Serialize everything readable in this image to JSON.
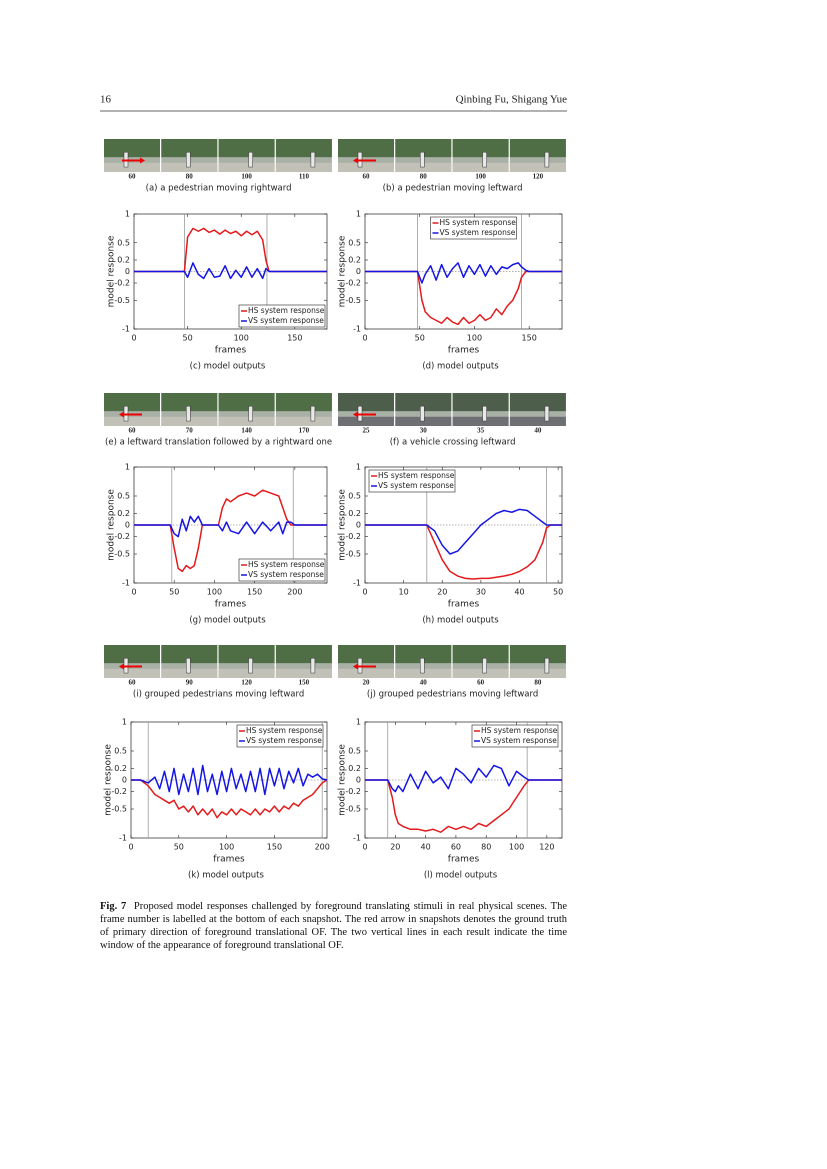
{
  "header": {
    "page_number": "16",
    "authors": "Qinbing Fu, Shigang Yue"
  },
  "snapshots": [
    {
      "frames": [
        60,
        80,
        100,
        110
      ],
      "caption": "(a) a pedestrian moving rightward"
    },
    {
      "frames": [
        60,
        80,
        100,
        120
      ],
      "caption": "(b) a pedestrian moving leftward"
    },
    {
      "frames": [
        60,
        70,
        140,
        170
      ],
      "caption": "(e) a leftward translation followed by a rightward one"
    },
    {
      "frames": [
        25,
        30,
        35,
        40
      ],
      "caption": "(f) a vehicle crossing leftward"
    },
    {
      "frames": [
        60,
        90,
        120,
        150
      ],
      "caption": "(i) grouped pedestrians moving leftward"
    },
    {
      "frames": [
        20,
        40,
        60,
        80
      ],
      "caption": "(j) grouped pedestrians moving leftward"
    }
  ],
  "chart_data": [
    {
      "type": "line",
      "caption": "(c) model outputs",
      "xlabel": "frames",
      "ylabel": "model response",
      "x": [
        0,
        45,
        47,
        50,
        55,
        60,
        65,
        70,
        75,
        80,
        85,
        90,
        95,
        100,
        105,
        110,
        115,
        120,
        123,
        126,
        130,
        180
      ],
      "series": [
        {
          "name": "HS system response",
          "color": "#e41a1c",
          "values": [
            0,
            0,
            0,
            0.6,
            0.75,
            0.7,
            0.75,
            0.68,
            0.72,
            0.65,
            0.72,
            0.66,
            0.7,
            0.62,
            0.7,
            0.64,
            0.7,
            0.55,
            0.2,
            0,
            0,
            0
          ]
        },
        {
          "name": "VS system response",
          "color": "#1515e6",
          "values": [
            0,
            0,
            0,
            -0.1,
            0.15,
            -0.05,
            -0.12,
            0.05,
            -0.1,
            -0.08,
            0.1,
            -0.12,
            0.02,
            -0.1,
            0.08,
            -0.1,
            0.05,
            -0.12,
            0.05,
            0,
            0,
            0
          ]
        }
      ],
      "vlines": [
        47,
        124
      ],
      "xlim": [
        0,
        180
      ],
      "xticks": [
        0,
        50,
        100,
        150
      ],
      "ylim": [
        -1,
        1
      ],
      "yticks": [
        -1,
        -0.5,
        -0.2,
        0,
        0.2,
        0.5,
        1
      ],
      "legend": "lower right"
    },
    {
      "type": "line",
      "caption": "(d) model outputs",
      "xlabel": "frames",
      "ylabel": "model response",
      "x": [
        0,
        45,
        48,
        52,
        55,
        60,
        65,
        70,
        75,
        80,
        85,
        90,
        95,
        100,
        105,
        110,
        115,
        120,
        125,
        130,
        135,
        140,
        143,
        147,
        150,
        180
      ],
      "series": [
        {
          "name": "HS system response",
          "color": "#e41a1c",
          "values": [
            0,
            0,
            0,
            -0.5,
            -0.7,
            -0.8,
            -0.85,
            -0.9,
            -0.8,
            -0.88,
            -0.92,
            -0.8,
            -0.9,
            -0.85,
            -0.75,
            -0.85,
            -0.8,
            -0.65,
            -0.75,
            -0.6,
            -0.5,
            -0.3,
            -0.1,
            0,
            0,
            0
          ]
        },
        {
          "name": "VS system response",
          "color": "#1515e6",
          "values": [
            0,
            0,
            0,
            -0.2,
            -0.05,
            0.1,
            -0.15,
            0.12,
            -0.1,
            0.05,
            0.15,
            -0.1,
            0.1,
            -0.05,
            0.12,
            -0.08,
            0.1,
            -0.05,
            0.08,
            0.05,
            0.12,
            0.15,
            0.08,
            0.02,
            0,
            0
          ]
        }
      ],
      "vlines": [
        48,
        143
      ],
      "xlim": [
        0,
        180
      ],
      "xticks": [
        0,
        50,
        100,
        150
      ],
      "ylim": [
        -1,
        1
      ],
      "yticks": [
        -1,
        -0.5,
        -0.2,
        0,
        0.2,
        0.5,
        1
      ],
      "legend": "upper center"
    },
    {
      "type": "line",
      "caption": "(g) model outputs",
      "xlabel": "frames",
      "ylabel": "model response",
      "x": [
        0,
        40,
        45,
        50,
        55,
        60,
        65,
        70,
        75,
        80,
        85,
        90,
        100,
        105,
        110,
        115,
        120,
        130,
        140,
        150,
        160,
        170,
        180,
        185,
        190,
        195,
        200,
        240
      ],
      "series": [
        {
          "name": "HS system response",
          "color": "#e41a1c",
          "values": [
            0,
            0,
            0,
            -0.4,
            -0.75,
            -0.8,
            -0.7,
            -0.75,
            -0.7,
            -0.4,
            0,
            0,
            0,
            0,
            0.3,
            0.45,
            0.4,
            0.5,
            0.55,
            0.5,
            0.6,
            0.55,
            0.5,
            0.3,
            0.1,
            0,
            0,
            0
          ]
        },
        {
          "name": "VS system response",
          "color": "#1515e6",
          "values": [
            0,
            0,
            0,
            -0.15,
            -0.2,
            0.1,
            -0.1,
            0.15,
            0.05,
            0.15,
            0,
            0,
            0,
            0,
            -0.1,
            0.05,
            -0.1,
            -0.15,
            0.05,
            -0.15,
            0.05,
            -0.1,
            0.05,
            -0.15,
            0.05,
            0.05,
            0,
            0
          ]
        }
      ],
      "vlines": [
        47,
        198
      ],
      "xlim": [
        0,
        240
      ],
      "xticks": [
        0,
        50,
        100,
        150,
        200
      ],
      "ylim": [
        -1,
        1
      ],
      "yticks": [
        -1,
        -0.5,
        -0.2,
        0,
        0.2,
        0.5,
        1
      ],
      "legend": "lower right"
    },
    {
      "type": "line",
      "caption": "(h) model outputs",
      "xlabel": "frames",
      "ylabel": "model response",
      "x": [
        0,
        15,
        16,
        18,
        20,
        22,
        24,
        26,
        28,
        30,
        32,
        34,
        36,
        38,
        40,
        42,
        44,
        46,
        47,
        48,
        51
      ],
      "series": [
        {
          "name": "HS system response",
          "color": "#e41a1c",
          "values": [
            0,
            0,
            0,
            -0.3,
            -0.6,
            -0.8,
            -0.88,
            -0.92,
            -0.93,
            -0.92,
            -0.92,
            -0.9,
            -0.88,
            -0.85,
            -0.8,
            -0.72,
            -0.6,
            -0.3,
            -0.05,
            0,
            0
          ]
        },
        {
          "name": "VS system response",
          "color": "#1515e6",
          "values": [
            0,
            0,
            0,
            -0.1,
            -0.35,
            -0.5,
            -0.45,
            -0.3,
            -0.15,
            0,
            0.1,
            0.2,
            0.25,
            0.22,
            0.27,
            0.25,
            0.15,
            0.05,
            0,
            0,
            0
          ]
        }
      ],
      "vlines": [
        16,
        47
      ],
      "xlim": [
        0,
        51
      ],
      "xticks": [
        0,
        10,
        20,
        30,
        40,
        50
      ],
      "ylim": [
        -1,
        1
      ],
      "yticks": [
        -1,
        -0.5,
        -0.2,
        0,
        0.2,
        0.5,
        1
      ],
      "legend": "upper left"
    },
    {
      "type": "line",
      "caption": "(k) model outputs",
      "xlabel": "frames",
      "ylabel": "model response",
      "x": [
        0,
        10,
        18,
        25,
        30,
        35,
        40,
        45,
        50,
        55,
        60,
        65,
        70,
        75,
        80,
        85,
        90,
        95,
        100,
        105,
        110,
        115,
        120,
        125,
        130,
        135,
        140,
        145,
        150,
        155,
        160,
        165,
        170,
        175,
        180,
        185,
        190,
        195,
        200,
        205
      ],
      "series": [
        {
          "name": "HS system response",
          "color": "#e41a1c",
          "values": [
            0,
            0,
            -0.1,
            -0.25,
            -0.3,
            -0.35,
            -0.4,
            -0.35,
            -0.5,
            -0.45,
            -0.55,
            -0.45,
            -0.6,
            -0.5,
            -0.6,
            -0.5,
            -0.65,
            -0.55,
            -0.6,
            -0.5,
            -0.6,
            -0.5,
            -0.55,
            -0.6,
            -0.5,
            -0.6,
            -0.5,
            -0.55,
            -0.45,
            -0.55,
            -0.45,
            -0.5,
            -0.4,
            -0.45,
            -0.35,
            -0.3,
            -0.25,
            -0.15,
            -0.05,
            0
          ]
        },
        {
          "name": "VS system response",
          "color": "#1515e6",
          "values": [
            0,
            0,
            -0.05,
            0.05,
            -0.15,
            0.15,
            -0.2,
            0.2,
            -0.25,
            0.1,
            -0.2,
            0.2,
            -0.25,
            0.25,
            -0.2,
            0.1,
            -0.25,
            0.15,
            -0.2,
            0.2,
            -0.15,
            0.1,
            -0.2,
            0.15,
            -0.2,
            0.2,
            -0.25,
            0.2,
            -0.1,
            0.2,
            -0.15,
            0.15,
            -0.05,
            0.2,
            -0.1,
            0.1,
            0.05,
            0.1,
            0.02,
            0
          ]
        }
      ],
      "vlines": [
        18,
        200
      ],
      "xlim": [
        0,
        205
      ],
      "xticks": [
        0,
        50,
        100,
        150,
        200
      ],
      "ylim": [
        -1,
        1
      ],
      "yticks": [
        -1,
        -0.5,
        -0.2,
        0,
        0.2,
        0.5,
        1
      ],
      "legend": "upper right"
    },
    {
      "type": "line",
      "caption": "(l) model outputs",
      "xlabel": "frames",
      "ylabel": "model response",
      "x": [
        0,
        12,
        15,
        18,
        20,
        22,
        25,
        30,
        35,
        40,
        45,
        50,
        55,
        60,
        65,
        70,
        75,
        80,
        85,
        90,
        95,
        100,
        105,
        108,
        112,
        130
      ],
      "series": [
        {
          "name": "HS system response",
          "color": "#e41a1c",
          "values": [
            0,
            0,
            0,
            -0.3,
            -0.6,
            -0.75,
            -0.8,
            -0.85,
            -0.85,
            -0.88,
            -0.85,
            -0.9,
            -0.8,
            -0.85,
            -0.8,
            -0.85,
            -0.75,
            -0.8,
            -0.7,
            -0.6,
            -0.5,
            -0.3,
            -0.1,
            0,
            0,
            0
          ]
        },
        {
          "name": "VS system response",
          "color": "#1515e6",
          "values": [
            0,
            0,
            0,
            -0.15,
            -0.2,
            -0.1,
            -0.2,
            0.1,
            -0.15,
            0.15,
            -0.05,
            0.05,
            -0.15,
            0.2,
            0.1,
            -0.05,
            0.2,
            0.05,
            0.25,
            0.2,
            -0.1,
            0.15,
            0.05,
            0,
            0,
            0
          ]
        }
      ],
      "vlines": [
        15,
        107
      ],
      "xlim": [
        0,
        130
      ],
      "xticks": [
        0,
        20,
        40,
        60,
        80,
        100,
        120
      ],
      "ylim": [
        -1,
        1
      ],
      "yticks": [
        -1,
        -0.5,
        -0.2,
        0,
        0.2,
        0.5,
        1
      ],
      "legend": "upper right"
    }
  ],
  "figure_caption": {
    "label": "Fig. 7",
    "text": "Proposed model responses challenged by foreground translating stimuli in real physical scenes. The frame number is labelled at the bottom of each snapshot. The red arrow in snapshots denotes the ground truth of primary direction of foreground translational OF. The two vertical lines in each result indicate the time window of the appearance of foreground translational OF."
  }
}
